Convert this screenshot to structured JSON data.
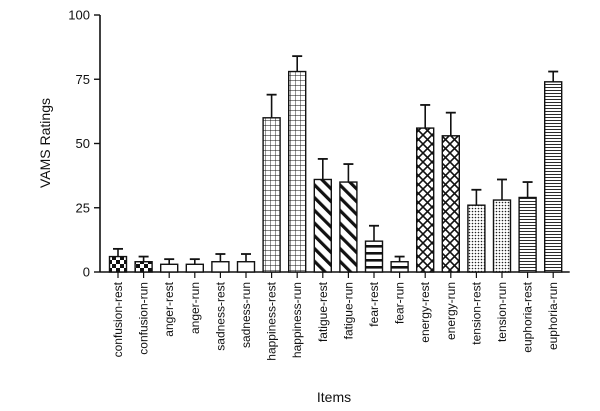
{
  "chart_data": {
    "type": "bar",
    "title": "",
    "xlabel": "Items",
    "ylabel": "VAMS Ratings",
    "ylim": [
      0,
      100
    ],
    "yticks": [
      0,
      25,
      50,
      75,
      100
    ],
    "grid": false,
    "categories": [
      "confusion-rest",
      "confusion-run",
      "anger-rest",
      "anger-run",
      "sadness-rest",
      "sadness-run",
      "happiness-rest",
      "happiness-run",
      "fatigue-rest",
      "fatigue-run",
      "fear-rest",
      "fear-run",
      "energy-rest",
      "energy-run",
      "tension-rest",
      "tension-run",
      "euphoria-rest",
      "euphoria-run"
    ],
    "values": [
      6,
      4,
      3,
      3,
      4,
      4,
      60,
      78,
      36,
      35,
      12,
      4,
      56,
      53,
      26,
      28,
      29,
      74
    ],
    "error": [
      3,
      2,
      2,
      2,
      3,
      3,
      9,
      6,
      8,
      7,
      6,
      2,
      9,
      9,
      6,
      8,
      6,
      4
    ],
    "patterns": [
      "checker",
      "checker",
      "plain",
      "plain",
      "plain",
      "plain",
      "grid",
      "grid",
      "diagonal",
      "diagonal",
      "hstripes",
      "hstripes",
      "crosshatch",
      "crosshatch",
      "dots",
      "dots",
      "hlines",
      "hlines"
    ],
    "colors": {
      "stroke": "#111111",
      "background": "#ffffff"
    }
  }
}
